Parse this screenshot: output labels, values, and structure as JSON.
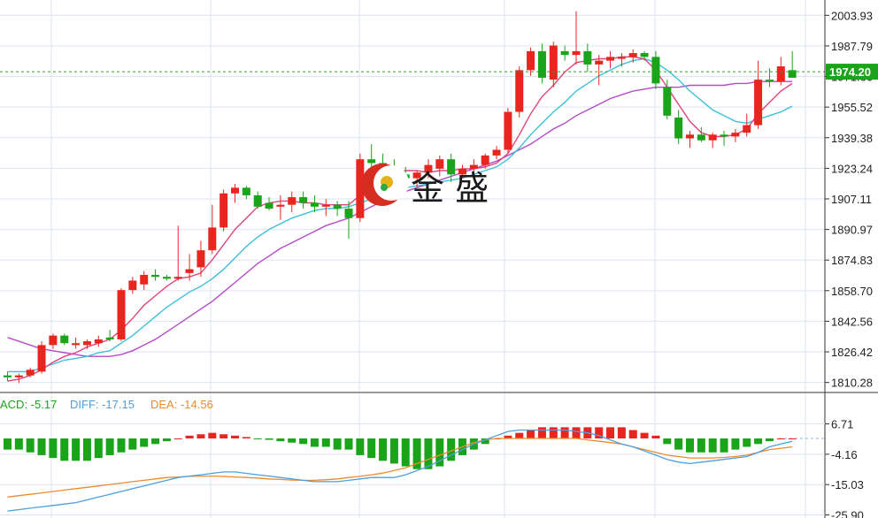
{
  "colors": {
    "up": "#e8251f",
    "down": "#1aa41a",
    "ma_fast": "#e0457b",
    "ma_mid": "#3ec0d8",
    "ma_slow": "#b54bc8",
    "diff": "#4a9fe0",
    "dea": "#ef8a2d",
    "grid": "#dde6f0",
    "current_price_line": "#22aa22",
    "badge": "#1aa41a"
  },
  "watermark": {
    "icon": "jinsheng-logo-icon",
    "text": "金 盛"
  },
  "current_price": "1974.20",
  "macd_legend": {
    "macd_label": "ACD: -5.17",
    "diff_label": "DIFF: -17.15",
    "dea_label": "DEA: -14.56"
  },
  "chart_data": [
    {
      "type": "candlestick",
      "title": "",
      "ylim": [
        1805,
        2012
      ],
      "y_ticks": [
        "2003.93",
        "1987.79",
        "1971.66",
        "1955.52",
        "1939.38",
        "1923.24",
        "1907.11",
        "1890.97",
        "1874.83",
        "1858.70",
        "1842.56",
        "1826.42",
        "1810.28"
      ],
      "y_tick_values": [
        2003.93,
        1987.79,
        1971.66,
        1955.52,
        1939.38,
        1923.24,
        1907.11,
        1890.97,
        1874.83,
        1858.7,
        1842.56,
        1826.42,
        1810.28
      ],
      "current_price_value": 1974.2,
      "ohlc": [
        [
          1814,
          1816,
          1811,
          1813
        ],
        [
          1813,
          1815,
          1810,
          1814
        ],
        [
          1814,
          1818,
          1813,
          1817
        ],
        [
          1816,
          1832,
          1815,
          1830
        ],
        [
          1830,
          1836,
          1828,
          1835
        ],
        [
          1835,
          1836,
          1830,
          1831
        ],
        [
          1830,
          1834,
          1828,
          1831
        ],
        [
          1830,
          1833,
          1828,
          1832
        ],
        [
          1831,
          1835,
          1829,
          1833
        ],
        [
          1834,
          1838,
          1832,
          1833
        ],
        [
          1833,
          1860,
          1832,
          1859
        ],
        [
          1859,
          1866,
          1857,
          1864
        ],
        [
          1862,
          1869,
          1859,
          1867
        ],
        [
          1867,
          1870,
          1864,
          1866
        ],
        [
          1866,
          1867,
          1864,
          1865
        ],
        [
          1865,
          1893,
          1864,
          1866
        ],
        [
          1868,
          1878,
          1864,
          1870
        ],
        [
          1871,
          1885,
          1866,
          1880
        ],
        [
          1880,
          1904,
          1878,
          1892
        ],
        [
          1892,
          1912,
          1890,
          1910
        ],
        [
          1910,
          1915,
          1905,
          1913
        ],
        [
          1913,
          1914,
          1907,
          1909
        ],
        [
          1909,
          1911,
          1902,
          1903
        ],
        [
          1905,
          1908,
          1901,
          1902
        ],
        [
          1903,
          1909,
          1896,
          1904
        ],
        [
          1904,
          1911,
          1900,
          1908
        ],
        [
          1908,
          1911,
          1902,
          1905
        ],
        [
          1905,
          1909,
          1900,
          1903
        ],
        [
          1903,
          1907,
          1898,
          1904
        ],
        [
          1904,
          1906,
          1898,
          1902
        ],
        [
          1902,
          1906,
          1886,
          1897
        ],
        [
          1897,
          1931,
          1895,
          1928
        ],
        [
          1928,
          1936,
          1917,
          1926
        ],
        [
          1926,
          1931,
          1921,
          1924
        ],
        [
          1924,
          1928,
          1918,
          1920
        ],
        [
          1920,
          1924,
          1916,
          1918
        ],
        [
          1918,
          1922,
          1913,
          1921
        ],
        [
          1921,
          1928,
          1918,
          1925
        ],
        [
          1923,
          1930,
          1919,
          1928
        ],
        [
          1928,
          1931,
          1916,
          1920
        ],
        [
          1920,
          1925,
          1918,
          1923
        ],
        [
          1923,
          1928,
          1921,
          1925
        ],
        [
          1925,
          1931,
          1923,
          1930
        ],
        [
          1930,
          1935,
          1928,
          1933
        ],
        [
          1933,
          1955,
          1931,
          1953
        ],
        [
          1953,
          1977,
          1950,
          1975
        ],
        [
          1975,
          1987,
          1972,
          1985
        ],
        [
          1985,
          1989,
          1968,
          1971
        ],
        [
          1970,
          1990,
          1966,
          1988
        ],
        [
          1985,
          1988,
          1980,
          1983
        ],
        [
          1983,
          2006,
          1978,
          1985
        ],
        [
          1985,
          1989,
          1974,
          1978
        ],
        [
          1978,
          1983,
          1967,
          1980
        ],
        [
          1980,
          1985,
          1976,
          1982
        ],
        [
          1981,
          1984,
          1977,
          1982
        ],
        [
          1982,
          1986,
          1979,
          1984
        ],
        [
          1984,
          1985,
          1980,
          1982
        ],
        [
          1982,
          1985,
          1965,
          1968
        ],
        [
          1966,
          1970,
          1949,
          1951
        ],
        [
          1950,
          1954,
          1936,
          1939
        ],
        [
          1939,
          1943,
          1934,
          1941
        ],
        [
          1941,
          1945,
          1937,
          1938
        ],
        [
          1938,
          1942,
          1934,
          1941
        ],
        [
          1941,
          1943,
          1935,
          1940
        ],
        [
          1940,
          1944,
          1937,
          1942
        ],
        [
          1942,
          1952,
          1940,
          1946
        ],
        [
          1946,
          1980,
          1944,
          1970
        ],
        [
          1970,
          1976,
          1966,
          1969
        ],
        [
          1969,
          1982,
          1967,
          1977
        ],
        [
          1975,
          1985,
          1973,
          1971
        ]
      ],
      "ma_fast": [
        1811,
        1812,
        1814,
        1817,
        1821,
        1824,
        1826,
        1829,
        1831,
        1833,
        1838,
        1844,
        1851,
        1856,
        1861,
        1865,
        1866,
        1868,
        1875,
        1883,
        1891,
        1897,
        1903,
        1905,
        1906,
        1906,
        1905,
        1905,
        1904,
        1904,
        1904,
        1909,
        1914,
        1918,
        1921,
        1922,
        1922,
        1921,
        1922,
        1922,
        1923,
        1923,
        1924,
        1926,
        1931,
        1941,
        1952,
        1961,
        1967,
        1974,
        1979,
        1980,
        1981,
        1981,
        1982,
        1982,
        1981,
        1975,
        1966,
        1957,
        1948,
        1942,
        1940,
        1940,
        1941,
        1944,
        1952,
        1958,
        1964,
        1968
      ],
      "ma_mid": [
        1816,
        1816,
        1816,
        1818,
        1820,
        1822,
        1823,
        1824,
        1826,
        1827,
        1831,
        1835,
        1840,
        1845,
        1850,
        1854,
        1858,
        1861,
        1865,
        1870,
        1876,
        1882,
        1887,
        1891,
        1894,
        1897,
        1899,
        1901,
        1902,
        1902,
        1903,
        1905,
        1907,
        1909,
        1911,
        1913,
        1914,
        1915,
        1916,
        1917,
        1918,
        1920,
        1922,
        1924,
        1928,
        1934,
        1941,
        1947,
        1953,
        1958,
        1964,
        1968,
        1972,
        1975,
        1978,
        1980,
        1981,
        1979,
        1975,
        1970,
        1964,
        1959,
        1954,
        1951,
        1948,
        1947,
        1949,
        1951,
        1953,
        1956
      ],
      "ma_slow": [
        1834,
        1832,
        1830,
        1828,
        1827,
        1826,
        1825,
        1824,
        1824,
        1824,
        1825,
        1827,
        1830,
        1833,
        1837,
        1841,
        1845,
        1849,
        1853,
        1858,
        1863,
        1868,
        1873,
        1877,
        1881,
        1884,
        1887,
        1890,
        1893,
        1895,
        1897,
        1900,
        1903,
        1906,
        1909,
        1911,
        1913,
        1915,
        1917,
        1919,
        1921,
        1923,
        1925,
        1927,
        1930,
        1933,
        1936,
        1940,
        1944,
        1947,
        1951,
        1954,
        1957,
        1960,
        1962,
        1964,
        1965,
        1966,
        1966,
        1966,
        1967,
        1967,
        1967,
        1967,
        1968,
        1968,
        1969,
        1969,
        1969,
        1969
      ]
    },
    {
      "type": "bar",
      "title": "MACD",
      "ylim": [
        -27,
        11
      ],
      "y_ticks": [
        "6.71",
        "-4.16",
        "-15.03",
        "-25.90"
      ],
      "y_tick_values": [
        6.71,
        -4.16,
        -15.03,
        -25.9
      ],
      "zero_line_value": 1.5,
      "values": [
        -4,
        -4,
        -5,
        -6,
        -7,
        -8,
        -8,
        -8,
        -7,
        -6,
        -5,
        -4,
        -3,
        -2,
        -1,
        0,
        1,
        1.5,
        2,
        1.5,
        1,
        0.5,
        -0.3,
        -0.5,
        -1,
        -1.5,
        -2,
        -3,
        -3,
        -4,
        -4,
        -6,
        -7,
        -8,
        -9,
        -10,
        -11,
        -11,
        -10,
        -8,
        -6,
        -4,
        -2,
        0,
        1,
        2,
        3,
        4,
        4,
        4,
        4,
        4,
        4,
        4,
        4,
        3,
        2,
        1,
        -2,
        -4,
        -5,
        -5,
        -5,
        -5,
        -4,
        -3,
        -2,
        -1,
        0,
        0
      ],
      "diff": [
        -26,
        -25.5,
        -25,
        -24.5,
        -24,
        -23.5,
        -23,
        -22,
        -21,
        -20,
        -19,
        -18,
        -17,
        -16,
        -15,
        -14,
        -13.5,
        -13,
        -12.5,
        -12,
        -12,
        -12.5,
        -13,
        -13.5,
        -14,
        -14.5,
        -15,
        -15.5,
        -15.5,
        -15.5,
        -15,
        -14.5,
        -14,
        -14,
        -14,
        -13,
        -11.5,
        -10,
        -8,
        -6,
        -4,
        -2,
        -0.5,
        1,
        2.5,
        3,
        3,
        3,
        3,
        3,
        2.5,
        2,
        1,
        -0.5,
        -2,
        -3,
        -4.5,
        -6,
        -7.5,
        -8.5,
        -9,
        -8.5,
        -8,
        -7.5,
        -7,
        -6.5,
        -5,
        -3,
        -2,
        -1
      ],
      "dea": [
        -21,
        -20.5,
        -20,
        -19.5,
        -19,
        -18.5,
        -18,
        -17.5,
        -17,
        -16.5,
        -16,
        -15.5,
        -15,
        -14.5,
        -14,
        -13.8,
        -13.6,
        -13.5,
        -13.5,
        -13.6,
        -13.8,
        -14,
        -14.2,
        -14.5,
        -14.7,
        -14.9,
        -15,
        -15,
        -14.8,
        -14.5,
        -14,
        -13.6,
        -13,
        -12.4,
        -11.5,
        -10.5,
        -9,
        -7.5,
        -6,
        -4.5,
        -3,
        -1.5,
        -0.5,
        0,
        0,
        0,
        0,
        0,
        0,
        0,
        0,
        -0.5,
        -1,
        -1.5,
        -2,
        -3,
        -4,
        -5,
        -6,
        -6.5,
        -7,
        -7,
        -7,
        -6.8,
        -6.5,
        -6,
        -5,
        -4,
        -3.5,
        -3
      ]
    }
  ]
}
